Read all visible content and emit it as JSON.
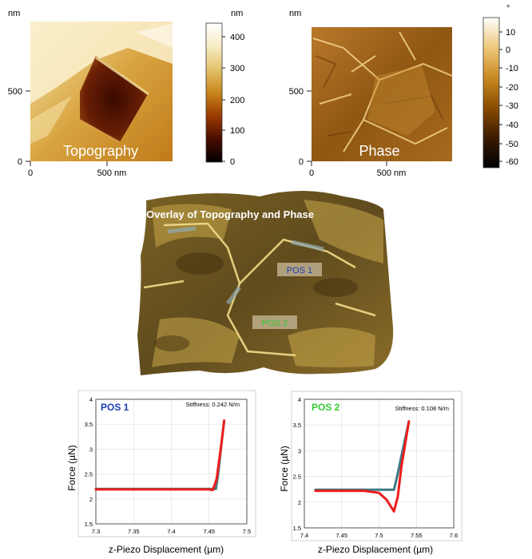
{
  "colors": {
    "topo_stops": [
      "#000000",
      "#4a0c00",
      "#9a3a00",
      "#c9861c",
      "#e3c26a",
      "#f7ecc4",
      "#ffffff"
    ],
    "phase_stops": [
      "#000000",
      "#3b1a00",
      "#8a4c00",
      "#c98a22",
      "#ecc87a",
      "#ffffff"
    ],
    "surface_base": "#6e5420",
    "pos1_text": "#1a3fb5",
    "pos2_text": "#33cc33",
    "label_bg": "#b8a886",
    "approach_curve": "#3d7a86",
    "retract_curve": "#ee1c1c",
    "plot_border": "#555555",
    "grid": "#dddddd"
  },
  "topography": {
    "unit_top": "nm",
    "y_ticks": [
      "0",
      "500"
    ],
    "x_ticks": [
      "0",
      "500 nm"
    ],
    "label": "Topography",
    "colorbar_unit": "nm",
    "colorbar_ticks": [
      "400",
      "300",
      "200",
      "100",
      "0"
    ]
  },
  "phase": {
    "unit_top": "nm",
    "y_ticks": [
      "0",
      "500"
    ],
    "x_ticks": [
      "0",
      "500 nm"
    ],
    "label": "Phase",
    "colorbar_unit": "°",
    "colorbar_ticks": [
      "10",
      "0",
      "-10",
      "-20",
      "-30",
      "-40",
      "-50",
      "-60"
    ]
  },
  "overlay": {
    "title": "Overlay of Topography and Phase",
    "pos1_label": "POS 1",
    "pos2_label": "POS 2"
  },
  "chart_data": [
    {
      "type": "line",
      "panel_label": "POS 1",
      "annotation": "Stiffness: 0.242 N/m",
      "xlabel": "z-Piezo Displacement (µm)",
      "ylabel": "Force (µN)",
      "xlim": [
        7.3,
        7.5
      ],
      "ylim": [
        1.5,
        4
      ],
      "x_ticks": [
        "7.3",
        "7.35",
        "7.4",
        "7.45",
        "7.5"
      ],
      "y_ticks": [
        "1.5",
        "2",
        "2.5",
        "3",
        "3.5",
        "4"
      ],
      "grid": true,
      "series": [
        {
          "role": "approach",
          "x": [
            7.3,
            7.35,
            7.4,
            7.45,
            7.459,
            7.462,
            7.466,
            7.47
          ],
          "y": [
            2.2,
            2.2,
            2.2,
            2.2,
            2.2,
            2.5,
            3.05,
            3.57
          ]
        },
        {
          "role": "retract",
          "x": [
            7.3,
            7.35,
            7.4,
            7.45,
            7.455,
            7.46,
            7.465,
            7.47
          ],
          "y": [
            2.19,
            2.19,
            2.19,
            2.19,
            2.18,
            2.4,
            2.95,
            3.57
          ]
        }
      ]
    },
    {
      "type": "line",
      "panel_label": "POS 2",
      "annotation": "Stiffness: 0.108 N/m",
      "xlabel": "z-Piezo Displacement (µm)",
      "ylabel": "Force (µN)",
      "xlim": [
        7.4,
        7.6
      ],
      "ylim": [
        1.5,
        4
      ],
      "x_ticks": [
        "7.4",
        "7.45",
        "7.5",
        "7.55",
        "7.6"
      ],
      "y_ticks": [
        "1.5",
        "2",
        "2.5",
        "3",
        "3.5",
        "4"
      ],
      "grid": true,
      "series": [
        {
          "role": "approach",
          "x": [
            7.415,
            7.45,
            7.48,
            7.505,
            7.52,
            7.525,
            7.53,
            7.54
          ],
          "y": [
            2.24,
            2.24,
            2.24,
            2.24,
            2.24,
            2.55,
            2.9,
            3.57
          ]
        },
        {
          "role": "retract",
          "x": [
            7.415,
            7.45,
            7.48,
            7.5,
            7.51,
            7.52,
            7.525,
            7.53,
            7.54
          ],
          "y": [
            2.22,
            2.22,
            2.22,
            2.18,
            2.05,
            1.82,
            2.1,
            2.7,
            3.57
          ]
        }
      ]
    }
  ]
}
